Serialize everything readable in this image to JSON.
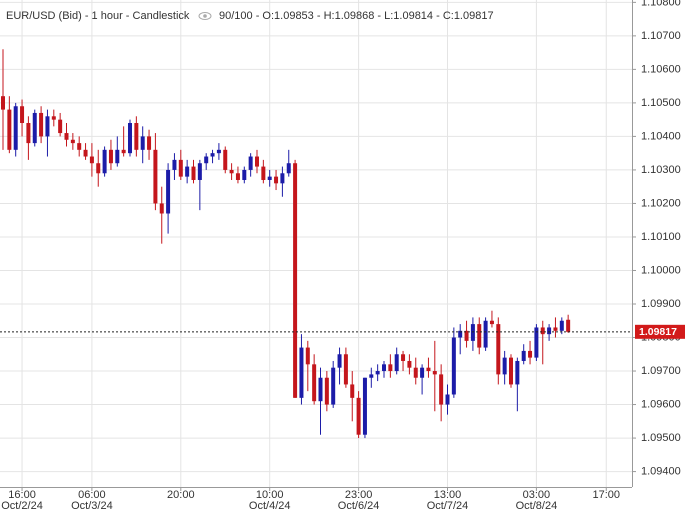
{
  "chart_data": {
    "type": "candlestick",
    "header_title": "EUR/USD (Bid) - 1 hour - Candlestick",
    "header_info": "90/100 - O:1.09853 - H:1.09868 - L:1.09814 - C:1.09817",
    "categories": [
      null,
      null,
      null,
      "16:00",
      null,
      null,
      null,
      null,
      null,
      null,
      null,
      null,
      null,
      null,
      "06:00",
      null,
      null,
      null,
      null,
      null,
      null,
      null,
      null,
      null,
      null,
      null,
      null,
      null,
      "20:00",
      null,
      null,
      null,
      null,
      null,
      null,
      null,
      null,
      null,
      null,
      null,
      null,
      null,
      "10:00",
      null,
      null,
      null,
      null,
      null,
      null,
      null,
      null,
      null,
      null,
      null,
      null,
      null,
      "23:00",
      null,
      null,
      null,
      null,
      null,
      null,
      null,
      null,
      null,
      null,
      null,
      null,
      null,
      "13:00",
      null,
      null,
      null,
      null,
      null,
      null,
      null,
      null,
      null,
      null,
      null,
      null,
      null,
      "03:00",
      null,
      null,
      null,
      null,
      null,
      null,
      null,
      null,
      null,
      null,
      "17:00",
      null,
      null,
      null
    ],
    "category_dates": [
      null,
      null,
      null,
      "Oct/2/24",
      null,
      null,
      null,
      null,
      null,
      null,
      null,
      null,
      null,
      null,
      "Oct/3/24",
      null,
      null,
      null,
      null,
      null,
      null,
      null,
      null,
      null,
      null,
      null,
      null,
      null,
      null,
      null,
      null,
      null,
      null,
      null,
      null,
      null,
      null,
      null,
      null,
      null,
      null,
      null,
      "Oct/4/24",
      null,
      null,
      null,
      null,
      null,
      null,
      null,
      null,
      null,
      null,
      null,
      null,
      null,
      "Oct/6/24",
      null,
      null,
      null,
      null,
      null,
      null,
      null,
      null,
      null,
      null,
      null,
      null,
      null,
      "Oct/7/24",
      null,
      null,
      null,
      null,
      null,
      null,
      null,
      null,
      null,
      null,
      null,
      null,
      null,
      "Oct/8/24",
      null,
      null,
      null,
      null,
      null,
      null,
      null,
      null,
      null,
      null,
      null,
      null,
      null,
      null
    ],
    "open": [
      1.1052,
      1.1048,
      1.1036,
      1.1049,
      1.1044,
      1.1038,
      1.1047,
      1.104,
      1.1046,
      1.1045,
      1.1041,
      1.1039,
      1.1038,
      1.1036,
      1.1034,
      1.1032,
      1.1029,
      1.1036,
      1.1032,
      1.1036,
      1.1035,
      1.1044,
      1.1036,
      1.104,
      1.1036,
      1.102,
      1.1017,
      1.103,
      1.1033,
      1.1028,
      1.1031,
      1.1027,
      1.1032,
      1.1034,
      1.1035,
      1.1036,
      1.103,
      1.1029,
      1.1027,
      1.103,
      1.1034,
      1.1031,
      1.1027,
      1.1028,
      1.1026,
      1.1029,
      1.1032,
      1.0962,
      1.0977,
      1.0972,
      1.0961,
      1.0968,
      1.096,
      1.0971,
      1.0975,
      1.0966,
      1.0962,
      1.0951,
      1.0968,
      1.0969,
      1.097,
      1.0972,
      1.097,
      1.0975,
      1.0973,
      1.0971,
      1.0968,
      1.0971,
      1.097,
      1.0969,
      1.096,
      1.0963,
      1.098,
      1.0982,
      1.0979,
      1.0984,
      1.0977,
      1.0985,
      1.0984,
      1.0969,
      1.0974,
      1.0966,
      1.0973,
      1.0976,
      1.0974,
      1.0983,
      1.0981,
      1.0983,
      1.0982,
      1.09853,
      null,
      null,
      null,
      null,
      null,
      null,
      null,
      null,
      null
    ],
    "high": [
      1.1066,
      1.1052,
      1.105,
      1.1051,
      1.1046,
      1.1048,
      1.1049,
      1.1048,
      1.1048,
      1.1047,
      1.1044,
      1.1041,
      1.104,
      1.1038,
      1.1038,
      1.1036,
      1.1037,
      1.1039,
      1.104,
      1.1043,
      1.1045,
      1.1046,
      1.1043,
      1.1042,
      1.1041,
      1.1025,
      1.1032,
      1.1035,
      1.1036,
      1.1033,
      1.1033,
      1.1033,
      1.1035,
      1.1036,
      1.1038,
      1.1037,
      1.1032,
      1.1031,
      1.1031,
      1.1035,
      1.1036,
      1.1033,
      1.103,
      1.103,
      1.1031,
      1.1036,
      1.1033,
      1.0981,
      1.0979,
      1.0975,
      1.0971,
      1.097,
      1.0973,
      1.0977,
      1.0977,
      1.097,
      1.0964,
      1.0968,
      1.0971,
      1.0972,
      1.0973,
      1.0975,
      1.0977,
      1.0976,
      1.0975,
      1.0974,
      1.0972,
      1.0974,
      1.0979,
      1.0972,
      1.0966,
      1.0983,
      1.0984,
      1.0985,
      1.0986,
      1.0986,
      1.0986,
      1.0988,
      1.0986,
      1.0976,
      1.0975,
      1.0974,
      1.0978,
      1.0979,
      1.0984,
      1.0985,
      1.0984,
      1.0986,
      1.0986,
      1.09868,
      null,
      null,
      null,
      null,
      null,
      null,
      null,
      null,
      null
    ],
    "low": [
      1.1036,
      1.1035,
      1.1034,
      1.104,
      1.1033,
      1.1037,
      1.1038,
      1.1034,
      1.1043,
      1.104,
      1.1037,
      1.1036,
      1.1034,
      1.1033,
      1.1028,
      1.1025,
      1.1028,
      1.103,
      1.1031,
      1.1034,
      1.1034,
      1.1034,
      1.1032,
      1.1033,
      1.1018,
      1.1008,
      1.1011,
      1.1027,
      1.1027,
      1.1026,
      1.1026,
      1.1018,
      1.103,
      1.1032,
      1.1033,
      1.1029,
      1.1027,
      1.1026,
      1.1026,
      1.1028,
      1.1029,
      1.1026,
      1.1025,
      1.1024,
      1.1022,
      1.1028,
      1.0962,
      1.096,
      1.0964,
      1.096,
      1.0951,
      1.0958,
      1.0959,
      1.0966,
      1.0965,
      1.0955,
      1.095,
      1.095,
      1.0965,
      1.0967,
      1.0968,
      1.0968,
      1.0969,
      1.097,
      1.0969,
      1.0966,
      1.0963,
      1.0968,
      1.0958,
      1.0955,
      1.0957,
      1.0962,
      1.0975,
      1.0977,
      1.0976,
      1.0975,
      1.0976,
      1.0983,
      1.0966,
      1.0966,
      1.0965,
      1.0958,
      1.0972,
      1.0972,
      1.0973,
      1.0972,
      1.0979,
      1.098,
      1.0981,
      1.09814,
      null,
      null,
      null,
      null,
      null,
      null,
      null,
      null,
      null
    ],
    "close": [
      1.1048,
      1.1036,
      1.1049,
      1.1044,
      1.1038,
      1.1047,
      1.104,
      1.1046,
      1.1045,
      1.1041,
      1.1039,
      1.1038,
      1.1036,
      1.1034,
      1.1032,
      1.1029,
      1.1036,
      1.1032,
      1.1036,
      1.1035,
      1.1044,
      1.1036,
      1.104,
      1.1036,
      1.102,
      1.1017,
      1.103,
      1.1033,
      1.1028,
      1.1031,
      1.1027,
      1.1032,
      1.1034,
      1.1035,
      1.1036,
      1.103,
      1.1029,
      1.1027,
      1.103,
      1.1034,
      1.1031,
      1.1027,
      1.1028,
      1.1026,
      1.1029,
      1.1032,
      1.0962,
      1.0977,
      1.0972,
      1.0961,
      1.0968,
      1.096,
      1.0971,
      1.0975,
      1.0966,
      1.0962,
      1.0951,
      1.0968,
      1.0969,
      1.097,
      1.0972,
      1.097,
      1.0975,
      1.0973,
      1.0971,
      1.0968,
      1.0971,
      1.097,
      1.0969,
      1.096,
      1.0963,
      1.098,
      1.0982,
      1.0979,
      1.0984,
      1.0977,
      1.0985,
      1.0984,
      1.0969,
      1.0974,
      1.0966,
      1.0973,
      1.0976,
      1.0974,
      1.0983,
      1.0981,
      1.0983,
      1.0982,
      1.0985,
      1.09817,
      null,
      null,
      null,
      null,
      null,
      null,
      null,
      null,
      null
    ],
    "up_color": "#1c1ca8",
    "down_color": "#c4161c",
    "last_price_color": "#d21a1a",
    "ylim": [
      1.09354,
      1.10807
    ],
    "yticks": [
      {
        "value": 1.094,
        "label": "1.09400"
      },
      {
        "value": 1.095,
        "label": "1.09500"
      },
      {
        "value": 1.096,
        "label": "1.09600"
      },
      {
        "value": 1.097,
        "label": "1.09700"
      },
      {
        "value": 1.098,
        "label": "1.09800"
      },
      {
        "value": 1.099,
        "label": "1.09900"
      },
      {
        "value": 1.1,
        "label": "1.10000"
      },
      {
        "value": 1.101,
        "label": "1.10100"
      },
      {
        "value": 1.102,
        "label": "1.10200"
      },
      {
        "value": 1.103,
        "label": "1.10300"
      },
      {
        "value": 1.104,
        "label": "1.10400"
      },
      {
        "value": 1.105,
        "label": "1.10500"
      },
      {
        "value": 1.106,
        "label": "1.10600"
      },
      {
        "value": 1.107,
        "label": "1.10700"
      },
      {
        "value": 1.108,
        "label": "1.10800"
      }
    ],
    "grid": true
  }
}
